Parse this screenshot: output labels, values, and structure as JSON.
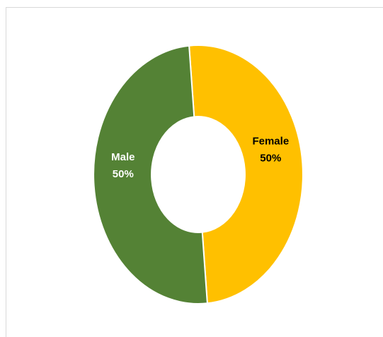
{
  "chart_data": {
    "type": "pie",
    "style": "doughnut",
    "slices": [
      {
        "label": "Female",
        "value": 50,
        "value_label": "50%",
        "color": "#FFC000",
        "label_color": "#000000"
      },
      {
        "label": "Male",
        "value": 50,
        "value_label": "50%",
        "color": "#548235",
        "label_color": "#FFFFFF"
      }
    ],
    "title": "",
    "legend": "none"
  }
}
